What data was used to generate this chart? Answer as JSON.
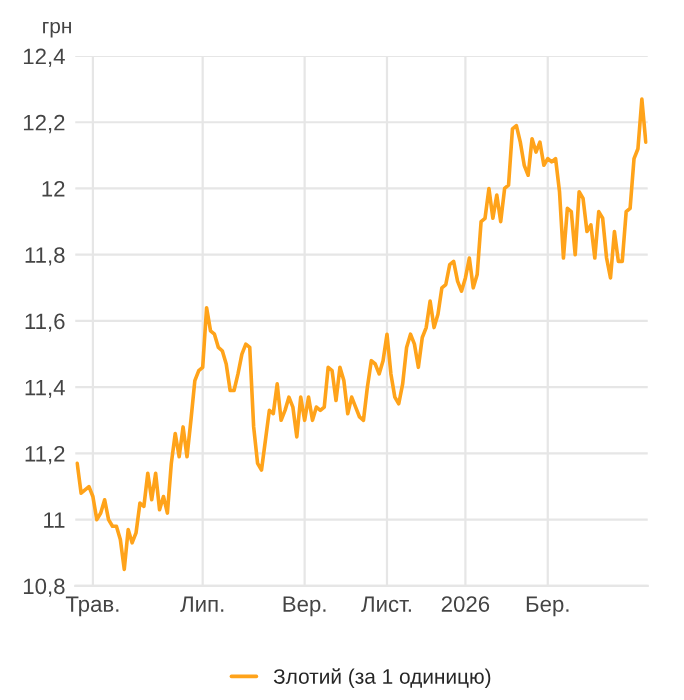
{
  "chart_data": {
    "type": "line",
    "ylabel": "грн",
    "categories": [
      null,
      null,
      null,
      null,
      "Трав.",
      null,
      null,
      null,
      null,
      null,
      null,
      null,
      null,
      null,
      null,
      null,
      null,
      null,
      null,
      null,
      null,
      null,
      null,
      null,
      null,
      null,
      null,
      null,
      null,
      null,
      null,
      null,
      "Лип.",
      null,
      null,
      null,
      null,
      null,
      null,
      null,
      null,
      null,
      null,
      null,
      null,
      null,
      null,
      null,
      null,
      null,
      null,
      null,
      null,
      null,
      null,
      null,
      null,
      null,
      "Вер.",
      null,
      null,
      null,
      null,
      null,
      null,
      null,
      null,
      null,
      null,
      null,
      null,
      null,
      null,
      null,
      null,
      null,
      null,
      null,
      null,
      "Лист.",
      null,
      null,
      null,
      null,
      null,
      null,
      null,
      null,
      null,
      null,
      null,
      null,
      null,
      null,
      null,
      null,
      null,
      null,
      null,
      "2026",
      null,
      null,
      null,
      null,
      null,
      null,
      null,
      null,
      null,
      null,
      null,
      null,
      null,
      null,
      null,
      null,
      null,
      null,
      null,
      null,
      "Бер.",
      null,
      null,
      null,
      null,
      null,
      null,
      null,
      null,
      null,
      null,
      null,
      null,
      null,
      null,
      null,
      null,
      null,
      null,
      null,
      null,
      null,
      null,
      null,
      null,
      null
    ],
    "series": [
      {
        "name": "Злотий (за 1 одиницю)",
        "color": "#ffa31a",
        "values": [
          11.17,
          11.08,
          11.09,
          11.1,
          11.07,
          11.0,
          11.02,
          11.06,
          11.0,
          10.98,
          10.98,
          10.94,
          10.85,
          10.97,
          10.93,
          10.96,
          11.05,
          11.04,
          11.14,
          11.06,
          11.14,
          11.03,
          11.07,
          11.02,
          11.17,
          11.26,
          11.19,
          11.28,
          11.19,
          11.3,
          11.42,
          11.45,
          11.46,
          11.64,
          11.57,
          11.56,
          11.52,
          11.51,
          11.47,
          11.39,
          11.39,
          11.44,
          11.5,
          11.53,
          11.52,
          11.28,
          11.17,
          11.15,
          11.24,
          11.33,
          11.32,
          11.41,
          11.3,
          11.33,
          11.37,
          11.34,
          11.25,
          11.37,
          11.3,
          11.37,
          11.3,
          11.34,
          11.33,
          11.34,
          11.46,
          11.45,
          11.36,
          11.46,
          11.42,
          11.32,
          11.37,
          11.34,
          11.31,
          11.3,
          11.4,
          11.48,
          11.47,
          11.44,
          11.48,
          11.56,
          11.44,
          11.37,
          11.35,
          11.41,
          11.52,
          11.56,
          11.53,
          11.46,
          11.55,
          11.58,
          11.66,
          11.58,
          11.62,
          11.7,
          11.71,
          11.77,
          11.78,
          11.72,
          11.69,
          11.73,
          11.79,
          11.7,
          11.74,
          11.9,
          11.91,
          12.0,
          11.91,
          11.98,
          11.9,
          12.0,
          12.01,
          12.18,
          12.19,
          12.14,
          12.07,
          12.04,
          12.15,
          12.11,
          12.14,
          12.07,
          12.09,
          12.08,
          12.09,
          11.99,
          11.79,
          11.94,
          11.93,
          11.8,
          11.99,
          11.97,
          11.87,
          11.89,
          11.79,
          11.93,
          11.91,
          11.79,
          11.73,
          11.87,
          11.78,
          11.78,
          11.93,
          11.94,
          12.09,
          12.12,
          12.27,
          12.14
        ]
      }
    ],
    "ylim": [
      10.8,
      12.4
    ],
    "yticks": [
      {
        "value": 10.8,
        "label": "10,8"
      },
      11,
      {
        "value": 11.2,
        "label": "11,2"
      },
      {
        "value": 11.4,
        "label": "11,4"
      },
      {
        "value": 11.6,
        "label": "11,6"
      },
      {
        "value": 11.8,
        "label": "11,8"
      },
      12,
      {
        "value": 12.2,
        "label": "12,2"
      },
      {
        "value": 12.4,
        "label": "12,4"
      }
    ],
    "grid": true,
    "legend": "bottom",
    "marker": "none",
    "line_style": "solid"
  }
}
